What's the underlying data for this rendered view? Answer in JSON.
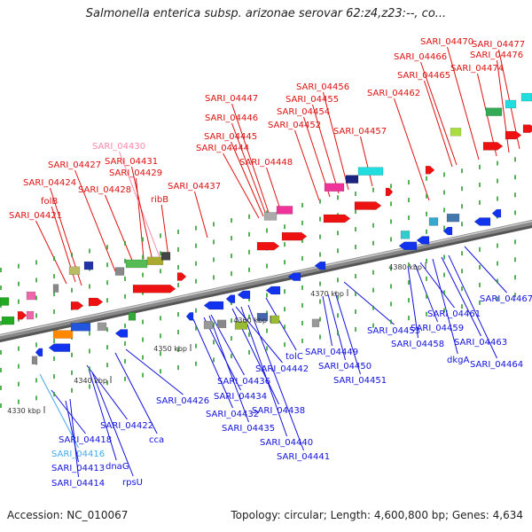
{
  "title": "Salmonella enterica subsp. arizonae serovar 62:z4,z23:--, co...",
  "accession_label": "Accession: NC_010067",
  "topology_label": "Topology: circular; Length: 4,600,800 bp; Genes: 4,634",
  "colors": {
    "forward_label": "#dd1111",
    "reverse_label": "#1111dd",
    "highlight_forward": "#ff88aa",
    "highlight_reverse": "#44aaee",
    "backbone": "#888888",
    "forward_arrow": "#ee1111",
    "reverse_arrow": "#1133ee"
  },
  "ticks": [
    "4330 kbp",
    "4340 kbp",
    "4350 kbp",
    "4360 kbp",
    "4370 kbp",
    "4380 kbp"
  ],
  "forward_genes": [
    "SARI_04421",
    "folB",
    "SARI_04424",
    "SARI_04427",
    "SARI_04428",
    "SARI_04429",
    "SARI_04430",
    "SARI_04431",
    "ribB",
    "SARI_04437",
    "SARI_04444",
    "SARI_04445",
    "SARI_04446",
    "SARI_04447",
    "SARI_04448",
    "SARI_04452",
    "SARI_04454",
    "SARI_04455",
    "SARI_04456",
    "SARI_04457",
    "SARI_04462",
    "SARI_04465",
    "SARI_04466",
    "SARI_04470",
    "SARI_04474",
    "SARI_04476",
    "SARI_04477"
  ],
  "reverse_genes": [
    "SARI_04413",
    "SARI_04414",
    "SARI_04416",
    "SARI_04418",
    "dnaG",
    "rpsU",
    "SARI_04422",
    "cca",
    "SARI_04426",
    "SARI_04432",
    "SARI_04434",
    "SARI_04435",
    "SARI_04436",
    "SARI_04438",
    "SARI_04440",
    "SARI_04441",
    "SARI_04442",
    "tolC",
    "SARI_04449",
    "SARI_04450",
    "SARI_04451",
    "SARI_04453",
    "SARI_04458",
    "SARI_04459",
    "SARI_04461",
    "dkgA",
    "SARI_04463",
    "SARI_04464",
    "SARI_04467"
  ]
}
